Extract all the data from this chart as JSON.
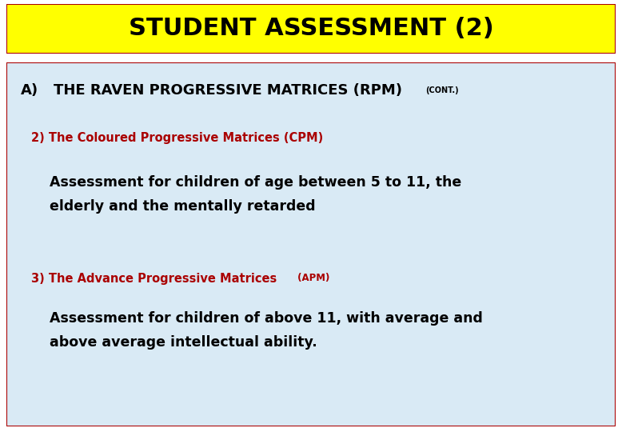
{
  "title": "STUDENT ASSESSMENT (2)",
  "title_bg": "#FFFF00",
  "title_color": "#000000",
  "body_bg": "#D9EAF5",
  "border_color": "#AA0000",
  "outer_bg": "#FFFFFF",
  "section_a_label": "A)",
  "section_a_text": "THE RAVEN PROGRESSIVE MATRICES (RPM)",
  "section_a_cont": "(CONT.)",
  "section_a_color": "#000000",
  "item2_label": "2) The Coloured Progressive Matrices (CPM)",
  "item2_color": "#AA0000",
  "item2_body_line1": "Assessment for children of age between 5 to 11, the",
  "item2_body_line2": "elderly and the mentally retarded",
  "item2_body_color": "#000000",
  "item3_label_main": "3) The Advance Progressive Matrices",
  "item3_label_paren": " (APM)",
  "item3_color": "#AA0000",
  "item3_body_line1": "Assessment for children of above 11, with average and",
  "item3_body_line2": "above average intellectual ability.",
  "item3_body_color": "#000000",
  "fig_width": 7.78,
  "fig_height": 5.4,
  "dpi": 100
}
